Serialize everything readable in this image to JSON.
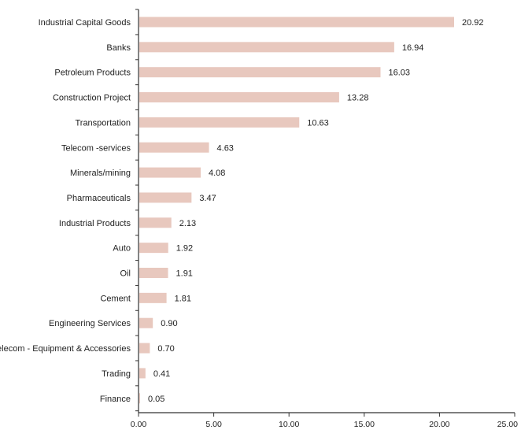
{
  "chart_data": {
    "type": "bar",
    "orientation": "horizontal",
    "categories": [
      "Industrial Capital Goods",
      "Banks",
      "Petroleum Products",
      "Construction Project",
      "Transportation",
      "Telecom -services",
      "Minerals/mining",
      "Pharmaceuticals",
      "Industrial Products",
      "Auto",
      "Oil",
      "Cement",
      "Engineering Services",
      "Telecom - Equipment & Accessories",
      "Trading",
      "Finance"
    ],
    "values": [
      20.92,
      16.94,
      16.03,
      13.28,
      10.63,
      4.63,
      4.08,
      3.47,
      2.13,
      1.92,
      1.91,
      1.81,
      0.9,
      0.7,
      0.41,
      0.05
    ],
    "value_labels": [
      "20.92",
      "16.94",
      "16.03",
      "13.28",
      "10.63",
      "4.63",
      "4.08",
      "3.47",
      "2.13",
      "1.92",
      "1.91",
      "1.81",
      "0.90",
      "0.70",
      "0.41",
      "0.05"
    ],
    "xlim": [
      0,
      25
    ],
    "x_ticks": [
      "0.00",
      "5.00",
      "10.00",
      "15.00",
      "20.00",
      "25.00"
    ],
    "title": "",
    "xlabel": "",
    "ylabel": "",
    "grid": false,
    "legend": "none",
    "colors": {
      "bar": "#e8c8be",
      "axis": "#333333",
      "text": "#222222"
    }
  }
}
